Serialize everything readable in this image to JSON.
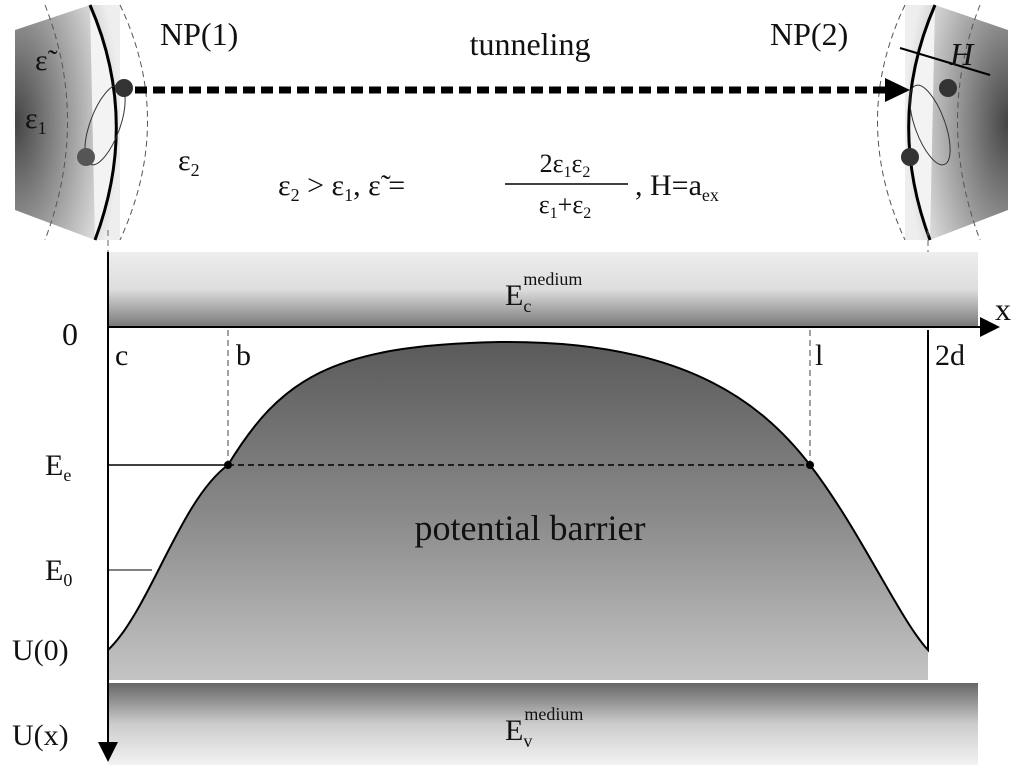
{
  "labels": {
    "np1": "NP(1)",
    "np2": "NP(2)",
    "tunneling": "tunneling",
    "h": "H",
    "eps_tilde": "ε̃",
    "eps1": {
      "base": "ε",
      "sub": "1"
    },
    "eps2": {
      "base": "ε",
      "sub": "2"
    }
  },
  "formula": {
    "parts": [
      "ε",
      "2",
      " > ",
      "ε",
      "1",
      ", ",
      "ε̃",
      " = ",
      "2ε",
      "1",
      "ε",
      "2",
      "ε",
      "1",
      "+ε",
      "2",
      ", H=a",
      "ex"
    ]
  },
  "axis": {
    "origin": "0",
    "x": "x",
    "y": "U(x)"
  },
  "points": {
    "c": "c",
    "b": "b",
    "l": "l",
    "2d": "2d"
  },
  "levels": {
    "ee": {
      "base": "E",
      "sub": "e"
    },
    "e0": {
      "base": "E",
      "sub": "0"
    },
    "u0": "U(0)"
  },
  "bands": {
    "conduction": {
      "base": "E",
      "sub": "c",
      "sup": "medium"
    },
    "valence": {
      "base": "E",
      "sub": "v",
      "sup": "medium"
    }
  },
  "barrier": "potential barrier"
}
